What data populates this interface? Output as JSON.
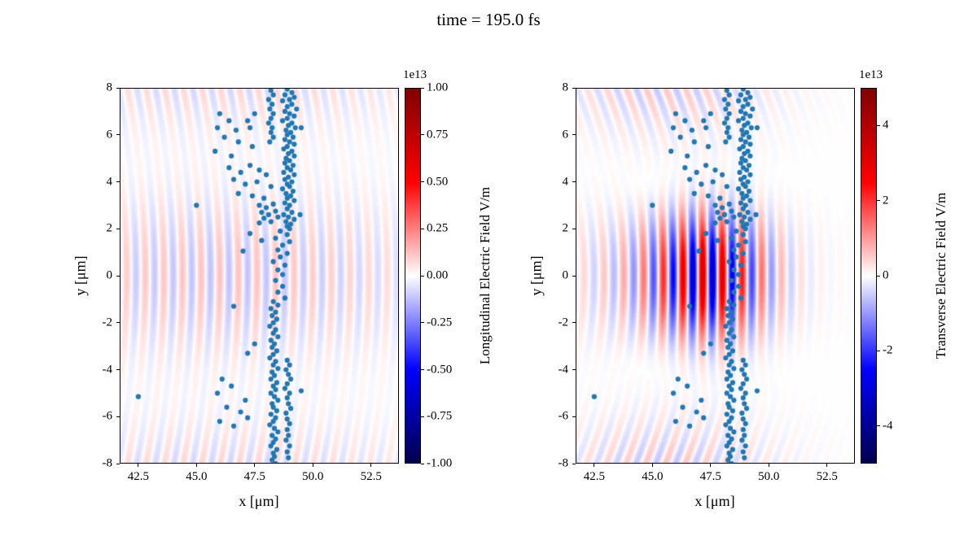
{
  "title": "time = 195.0 fs",
  "chart_data": {
    "type": "scatter",
    "title": "time = 195.0 fs",
    "description": "Two-panel particle-in-cell snapshot: particle scatter over electric-field maps (seismic colormap)",
    "panels": [
      {
        "name": "longitudinal",
        "xlabel": "x [μm]",
        "ylabel": "y [μm]",
        "xlim": [
          41.7,
          53.7
        ],
        "ylim": [
          -8,
          8
        ],
        "xticks": [
          42.5,
          45.0,
          47.5,
          50.0,
          52.5
        ],
        "xtick_labels": [
          "42.5",
          "45.0",
          "47.5",
          "50.0",
          "52.5"
        ],
        "yticks": [
          8,
          6,
          4,
          2,
          0,
          -2,
          -4,
          -6,
          -8
        ],
        "ytick_labels": [
          "8",
          "6",
          "4",
          "2",
          "0",
          "-2",
          "-4",
          "-6",
          "-8"
        ],
        "grid": false,
        "colorbar": {
          "label": "Longitudinal Electric Field V/m",
          "offset_text": "1e13",
          "cmap": "seismic",
          "clim": [
            -1.0,
            1.0
          ],
          "tick_values": [
            1.0,
            0.75,
            0.5,
            0.25,
            0.0,
            -0.25,
            -0.5,
            -0.75,
            -1.0
          ],
          "tick_labels": [
            "1.00",
            "0.75",
            "0.50",
            "0.25",
            "0.00",
            "-0.25",
            "-0.50",
            "-0.75",
            "-1.00"
          ]
        },
        "field": {
          "model": "curved_plane_waves",
          "wavelength": 0.8,
          "curvature": 0.012,
          "amplitude": 0.12,
          "xcenter": 46.2,
          "xsigma": 6.5,
          "ymod_period": 10.0
        }
      },
      {
        "name": "transverse",
        "xlabel": "x [μm]",
        "ylabel": "y [μm]",
        "xlim": [
          41.7,
          53.7
        ],
        "ylim": [
          -8,
          8
        ],
        "xticks": [
          42.5,
          45.0,
          47.5,
          50.0,
          52.5
        ],
        "xtick_labels": [
          "42.5",
          "45.0",
          "47.5",
          "50.0",
          "52.5"
        ],
        "yticks": [
          8,
          6,
          4,
          2,
          0,
          -2,
          -4,
          -6,
          -8
        ],
        "ytick_labels": [
          "8",
          "6",
          "4",
          "2",
          "0",
          "-2",
          "-4",
          "-6",
          "-8"
        ],
        "grid": false,
        "colorbar": {
          "label": "Transverse Electric Field V/m",
          "offset_text": "1e13",
          "cmap": "seismic",
          "clim": [
            -5.0,
            5.0
          ],
          "tick_values": [
            4,
            2,
            0,
            -2,
            -4
          ],
          "tick_labels": [
            "4",
            "2",
            "0",
            "-2",
            "-4"
          ]
        },
        "field": {
          "model": "pulse_plus_waves",
          "wavelength": 0.85,
          "core": {
            "amplitude": 0.55,
            "xcenter": 47.4,
            "xsigma": 1.7,
            "ysigma": 1.9
          },
          "outer": {
            "amplitude": 0.13,
            "xcenter": 45.6,
            "xsigma": 3.2,
            "curvature": 0.025,
            "ymod_period": 9.0
          }
        }
      }
    ],
    "scatter_series": {
      "name": "macroparticles",
      "color": "#1f77b4",
      "marker_radius_px": 3.1,
      "points": [
        [
          48.9,
          7.95
        ],
        [
          49.1,
          7.8
        ],
        [
          48.8,
          7.7
        ],
        [
          49.2,
          7.6
        ],
        [
          49.0,
          7.5
        ],
        [
          48.7,
          7.45
        ],
        [
          49.1,
          7.3
        ],
        [
          48.9,
          7.2
        ],
        [
          49.3,
          7.1
        ],
        [
          48.8,
          7.0
        ],
        [
          49.0,
          6.9
        ],
        [
          49.2,
          6.8
        ],
        [
          48.9,
          6.7
        ],
        [
          48.7,
          6.6
        ],
        [
          49.1,
          6.5
        ],
        [
          48.95,
          6.4
        ],
        [
          49.25,
          6.3
        ],
        [
          48.85,
          6.2
        ],
        [
          49.05,
          6.1
        ],
        [
          48.9,
          6.0
        ],
        [
          49.15,
          5.9
        ],
        [
          48.8,
          5.8
        ],
        [
          49.0,
          5.7
        ],
        [
          49.2,
          5.6
        ],
        [
          48.9,
          5.5
        ],
        [
          48.75,
          5.4
        ],
        [
          49.1,
          5.3
        ],
        [
          48.95,
          5.2
        ],
        [
          49.2,
          5.1
        ],
        [
          48.85,
          5.0
        ],
        [
          49.0,
          4.9
        ],
        [
          48.8,
          4.8
        ],
        [
          49.15,
          4.7
        ],
        [
          48.9,
          4.6
        ],
        [
          49.05,
          4.5
        ],
        [
          48.75,
          4.4
        ],
        [
          49.2,
          4.3
        ],
        [
          48.95,
          4.2
        ],
        [
          48.8,
          4.1
        ],
        [
          49.1,
          4.0
        ],
        [
          48.9,
          3.9
        ],
        [
          49.0,
          3.8
        ],
        [
          48.7,
          3.7
        ],
        [
          49.15,
          3.6
        ],
        [
          48.85,
          3.5
        ],
        [
          49.05,
          3.4
        ],
        [
          48.9,
          3.3
        ],
        [
          49.2,
          3.2
        ],
        [
          48.8,
          3.1
        ],
        [
          49.0,
          3.0
        ],
        [
          48.9,
          2.85
        ],
        [
          49.1,
          2.7
        ],
        [
          48.75,
          2.6
        ],
        [
          48.95,
          2.5
        ],
        [
          49.2,
          2.4
        ],
        [
          48.85,
          2.3
        ],
        [
          49.05,
          2.2
        ],
        [
          48.9,
          2.1
        ],
        [
          49.0,
          2.0
        ],
        [
          48.2,
          7.9
        ],
        [
          48.3,
          7.7
        ],
        [
          48.1,
          7.5
        ],
        [
          48.25,
          7.3
        ],
        [
          48.15,
          7.1
        ],
        [
          48.3,
          6.9
        ],
        [
          48.2,
          6.7
        ],
        [
          48.1,
          6.5
        ],
        [
          48.25,
          6.3
        ],
        [
          48.2,
          6.1
        ],
        [
          48.3,
          5.9
        ],
        [
          48.15,
          5.7
        ],
        [
          46.0,
          6.9
        ],
        [
          46.4,
          6.6
        ],
        [
          45.9,
          6.3
        ],
        [
          46.7,
          6.2
        ],
        [
          47.2,
          6.6
        ],
        [
          47.5,
          6.9
        ],
        [
          47.3,
          6.3
        ],
        [
          46.2,
          5.9
        ],
        [
          46.8,
          5.7
        ],
        [
          47.4,
          5.5
        ],
        [
          45.8,
          5.3
        ],
        [
          46.5,
          5.1
        ],
        [
          46.4,
          4.6
        ],
        [
          46.9,
          4.4
        ],
        [
          47.3,
          4.7
        ],
        [
          47.7,
          4.5
        ],
        [
          48.0,
          4.3
        ],
        [
          46.6,
          4.1
        ],
        [
          47.1,
          3.9
        ],
        [
          47.6,
          4.0
        ],
        [
          48.2,
          3.8
        ],
        [
          46.8,
          3.5
        ],
        [
          47.4,
          3.4
        ],
        [
          47.9,
          3.3
        ],
        [
          47.7,
          3.0
        ],
        [
          48.0,
          2.9
        ],
        [
          48.3,
          3.05
        ],
        [
          47.8,
          2.7
        ],
        [
          48.1,
          2.6
        ],
        [
          48.4,
          2.75
        ],
        [
          47.9,
          2.45
        ],
        [
          48.2,
          2.3
        ],
        [
          48.5,
          2.5
        ],
        [
          47.7,
          2.25
        ],
        [
          48.6,
          1.9
        ],
        [
          48.9,
          1.75
        ],
        [
          48.4,
          1.6
        ],
        [
          49.0,
          1.45
        ],
        [
          48.7,
          1.3
        ],
        [
          48.5,
          1.1
        ],
        [
          48.9,
          0.95
        ],
        [
          48.6,
          0.8
        ],
        [
          48.3,
          0.6
        ],
        [
          48.8,
          0.45
        ],
        [
          48.5,
          0.25
        ],
        [
          48.7,
          0.05
        ],
        [
          47.0,
          1.05
        ],
        [
          47.8,
          1.5
        ],
        [
          47.3,
          1.8
        ],
        [
          48.4,
          -0.2
        ],
        [
          48.7,
          -0.45
        ],
        [
          48.5,
          -0.7
        ],
        [
          48.8,
          -0.95
        ],
        [
          46.6,
          -1.3
        ],
        [
          48.3,
          -1.1
        ],
        [
          48.5,
          -1.25
        ],
        [
          48.2,
          -1.4
        ],
        [
          48.4,
          -1.55
        ],
        [
          48.25,
          -1.7
        ],
        [
          48.45,
          -1.85
        ],
        [
          48.3,
          -2.0
        ],
        [
          48.15,
          -2.15
        ],
        [
          48.4,
          -2.3
        ],
        [
          48.3,
          -2.45
        ],
        [
          48.5,
          -2.6
        ],
        [
          48.2,
          -2.75
        ],
        [
          48.35,
          -2.9
        ],
        [
          48.25,
          -3.05
        ],
        [
          48.45,
          -3.2
        ],
        [
          48.3,
          -3.35
        ],
        [
          48.15,
          -3.5
        ],
        [
          48.4,
          -3.65
        ],
        [
          48.3,
          -3.8
        ],
        [
          48.5,
          -3.95
        ],
        [
          48.25,
          -4.1
        ],
        [
          48.35,
          -4.25
        ],
        [
          48.2,
          -4.4
        ],
        [
          48.45,
          -4.55
        ],
        [
          48.3,
          -4.7
        ],
        [
          48.4,
          -4.85
        ],
        [
          48.2,
          -5.0
        ],
        [
          48.35,
          -5.15
        ],
        [
          48.5,
          -5.3
        ],
        [
          48.25,
          -5.45
        ],
        [
          48.3,
          -5.6
        ],
        [
          48.45,
          -5.75
        ],
        [
          48.2,
          -5.9
        ],
        [
          48.4,
          -6.05
        ],
        [
          48.3,
          -6.2
        ],
        [
          48.15,
          -6.35
        ],
        [
          48.35,
          -6.5
        ],
        [
          48.5,
          -6.65
        ],
        [
          48.25,
          -6.8
        ],
        [
          48.4,
          -6.95
        ],
        [
          48.3,
          -7.1
        ],
        [
          48.2,
          -7.25
        ],
        [
          48.45,
          -7.4
        ],
        [
          48.3,
          -7.55
        ],
        [
          48.35,
          -7.7
        ],
        [
          48.25,
          -7.85
        ],
        [
          48.4,
          -8.0
        ],
        [
          48.9,
          -3.6
        ],
        [
          49.0,
          -3.8
        ],
        [
          48.85,
          -4.0
        ],
        [
          48.95,
          -4.2
        ],
        [
          49.05,
          -4.4
        ],
        [
          48.9,
          -4.6
        ],
        [
          48.8,
          -4.8
        ],
        [
          49.0,
          -5.0
        ],
        [
          48.9,
          -5.2
        ],
        [
          48.95,
          -5.45
        ],
        [
          49.05,
          -5.65
        ],
        [
          48.85,
          -5.85
        ],
        [
          48.9,
          -6.1
        ],
        [
          49.0,
          -6.3
        ],
        [
          48.9,
          -6.55
        ],
        [
          48.95,
          -6.8
        ],
        [
          48.85,
          -7.0
        ],
        [
          49.0,
          -7.25
        ],
        [
          48.9,
          -7.5
        ],
        [
          48.95,
          -7.75
        ],
        [
          46.1,
          -4.4
        ],
        [
          46.5,
          -4.7
        ],
        [
          45.9,
          -5.0
        ],
        [
          46.3,
          -5.6
        ],
        [
          46.9,
          -5.8
        ],
        [
          47.1,
          -5.3
        ],
        [
          46.0,
          -6.2
        ],
        [
          46.6,
          -6.4
        ],
        [
          47.2,
          -6.05
        ],
        [
          47.5,
          -2.9
        ],
        [
          47.2,
          -3.3
        ],
        [
          49.5,
          -4.9
        ],
        [
          49.5,
          6.3
        ],
        [
          49.45,
          2.6
        ],
        [
          42.5,
          -5.15
        ],
        [
          45.0,
          3.0
        ]
      ]
    }
  }
}
